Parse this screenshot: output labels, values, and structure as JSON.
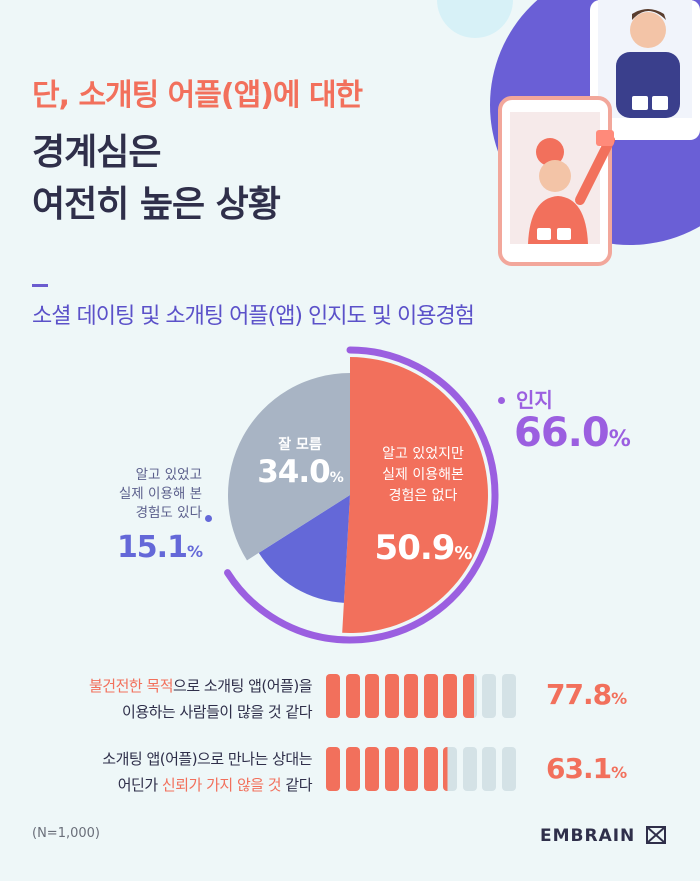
{
  "headline": {
    "line1": "단, 소개팅 어플(앱)에 대한",
    "line2": "경계심은",
    "line3": "여전히 높은 상황"
  },
  "subtitle": "소셜 데이팅 및 소개팅 어플(앱) 인지도 및 이용경험",
  "chart_data": [
    {
      "type": "pie",
      "categories": [
        "알고 있었지만 실제 이용해본 경험은 없다",
        "알고 있었고 실제 이용해 본 경험도 있다",
        "잘 모름"
      ],
      "values": [
        50.9,
        15.1,
        34.0
      ],
      "colors": [
        "#f2705c",
        "#6468d8",
        "#a8b4c4"
      ],
      "group_label": "인지",
      "group_value": 66.0
    },
    {
      "type": "bar",
      "categories": [
        "불건전한 목적으로 소개팅 앱(어플)을 이용하는 사람들이 많을 것 같다",
        "소개팅 앱(어플)으로 만나는 상대는 어딘가 신뢰가 가지 않을 것 같다"
      ],
      "values": [
        77.8,
        63.1
      ],
      "max": 100
    }
  ],
  "pie": {
    "aware_label": "인지",
    "aware_value": "66.0",
    "aware_pct": "%",
    "slice_unknown_label": "잘 모름",
    "slice_unknown_value": "34.0",
    "slice_unknown_pct": "%",
    "slice_no_use_line1": "알고 있었지만",
    "slice_no_use_line2": "실제 이용해본",
    "slice_no_use_line3": "경험은 없다",
    "slice_no_use_value": "50.9",
    "slice_no_use_pct": "%",
    "used_line1": "알고 있었고",
    "used_line2": "실제 이용해 본",
    "used_line3": "경험도 있다",
    "used_value": "15.1",
    "used_pct": "%"
  },
  "bars": [
    {
      "line1_hl": "불건전한 목적",
      "line1_rest": "으로 소개팅 앱(어플)을",
      "line2": "이용하는 사람들이 많을 것 같다",
      "value": "77.8",
      "pct": "%"
    },
    {
      "line1": "소개팅 앱(어플)으로 만나는 상대는",
      "line2_pre": "어딘가 ",
      "line2_hl": "신뢰가 가지 않을 것",
      "line2_post": " 같다",
      "value": "63.1",
      "pct": "%"
    }
  ],
  "footer": {
    "note": "(N=1,000)",
    "logo": "EMBRAIN"
  },
  "colors": {
    "background": "#eef7f8",
    "accent_coral": "#f2705c",
    "accent_purple": "#9b5fe0",
    "accent_blue": "#6468d8",
    "gray_slice": "#a8b4c4",
    "dark_text": "#2f2f4a"
  }
}
